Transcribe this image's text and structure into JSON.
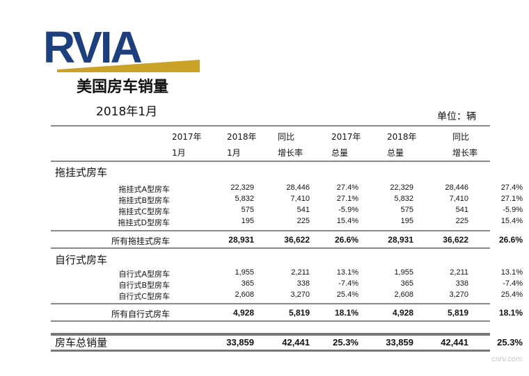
{
  "logo": {
    "text": "RVIA"
  },
  "title": "美国房车销量",
  "date": "2018年1月",
  "unit": "单位：辆",
  "headers": {
    "col1": [
      "2017年",
      "1月"
    ],
    "col2": [
      "2018年",
      "1月"
    ],
    "col3": [
      "同比",
      "增长率"
    ],
    "col4": [
      "2017年",
      "总量"
    ],
    "col5": [
      "2018年",
      "总量"
    ],
    "col6": [
      "同比",
      "增长率"
    ]
  },
  "towable": {
    "title": "拖挂式房车",
    "rows": [
      {
        "label": "拖挂式A型房车",
        "values": [
          "22,329",
          "28,446",
          "27.4%",
          "22,329",
          "28,446",
          "27.4%"
        ]
      },
      {
        "label": "拖挂式B型房车",
        "values": [
          "5,832",
          "7,410",
          "27.1%",
          "5,832",
          "7,410",
          "27.1%"
        ]
      },
      {
        "label": "拖挂式C型房车",
        "values": [
          "575",
          "541",
          "-5.9%",
          "575",
          "541",
          "-5.9%"
        ]
      },
      {
        "label": "拖挂式D型房车",
        "values": [
          "195",
          "225",
          "15.4%",
          "195",
          "225",
          "15.4%"
        ]
      }
    ],
    "subtotal": {
      "label": "所有拖挂式房车",
      "values": [
        "28,931",
        "36,622",
        "26.6%",
        "28,931",
        "36,622",
        "26.6%"
      ]
    }
  },
  "motorhome": {
    "title": "自行式房车",
    "rows": [
      {
        "label": "自行式A型房车",
        "values": [
          "1,955",
          "2,211",
          "13.1%",
          "1,955",
          "2,211",
          "13.1%"
        ]
      },
      {
        "label": "自行式B型房车",
        "values": [
          "365",
          "338",
          "-7.4%",
          "365",
          "338",
          "-7.4%"
        ]
      },
      {
        "label": "自行式C型房车",
        "values": [
          "2,608",
          "3,270",
          "25.4%",
          "2,608",
          "3,270",
          "25.4%"
        ]
      }
    ],
    "subtotal": {
      "label": "所有自行式房车",
      "values": [
        "4,928",
        "5,819",
        "18.1%",
        "4,928",
        "5,819",
        "18.1%"
      ]
    }
  },
  "total": {
    "label": "房车总销量",
    "values": [
      "33,859",
      "42,441",
      "25.3%",
      "33,859",
      "42,441",
      "25.3%"
    ]
  },
  "watermark": "cnrv.com"
}
